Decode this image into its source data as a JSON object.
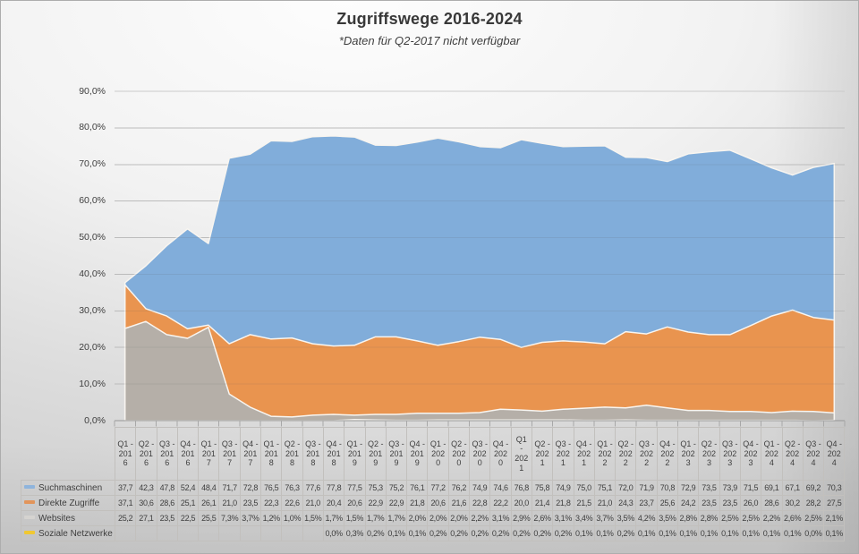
{
  "chart_data": {
    "type": "area",
    "stacked": false,
    "title": "Zugriffswege 2016-2024",
    "subtitle": "*Daten für Q2-2017 nicht verfügbar",
    "ylim": [
      0,
      90
    ],
    "grid": true,
    "legend_position": "table-rows-left",
    "y_tick_labels": [
      "90,0%",
      "80,0%",
      "70,0%",
      "60,0%",
      "50,0%",
      "40,0%",
      "30,0%",
      "20,0%",
      "10,0%",
      "0,0%"
    ],
    "categories": [
      "Q1-2016",
      "Q2-2016",
      "Q3-2016",
      "Q4-2016",
      "Q1-2017",
      "Q3-2017",
      "Q4-2017",
      "Q1-2018",
      "Q2-2018",
      "Q3-2018",
      "Q4-2018",
      "Q1-2019",
      "Q2-2019",
      "Q3-2019",
      "Q4-2019",
      "Q1-2020",
      "Q2-2020",
      "Q3-2020",
      "Q4-2020",
      "Q1-2021",
      "Q2-2021",
      "Q3-2021",
      "Q4-2021",
      "Q1-2022",
      "Q2-2022",
      "Q3-2022",
      "Q4-2022",
      "Q1-2023",
      "Q2-2023",
      "Q3-2023",
      "Q4-2023",
      "Q1-2024",
      "Q2-2024",
      "Q3-2024",
      "Q4-2024"
    ],
    "column_headers_display": [
      "Q1 -\n201\n6",
      "Q2 -\n201\n6",
      "Q3 -\n201\n6",
      "Q4 -\n201\n6",
      "Q1 -\n201\n7",
      "Q3 -\n201\n7",
      "Q4 -\n201\n7",
      "Q1 -\n201\n8",
      "Q2 -\n201\n8",
      "Q3 -\n201\n8",
      "Q4 -\n201\n8",
      "Q1 -\n201\n9",
      "Q2 -\n201\n9",
      "Q3 -\n201\n9",
      "Q4 -\n201\n9",
      "Q1 -\n202\n0",
      "Q2 -\n202\n0",
      "Q3 -\n202\n0",
      "Q4 -\n202\n0",
      "Q1\n-\n202\n1",
      "Q2 -\n202\n1",
      "Q3 -\n202\n1",
      "Q4 -\n202\n1",
      "Q1 -\n202\n2",
      "Q2 -\n202\n2",
      "Q3 -\n202\n2",
      "Q4 -\n202\n2",
      "Q1 -\n202\n3",
      "Q2 -\n202\n3",
      "Q3 -\n202\n3",
      "Q4 -\n202\n3",
      "Q1 -\n202\n4",
      "Q2 -\n202\n4",
      "Q3 -\n202\n4",
      "Q4 -\n202\n4"
    ],
    "series": [
      {
        "name": "Suchmaschinen",
        "area_color": "#81ADDA",
        "swatch_color": "#8FB4DC",
        "values": [
          37.7,
          42.3,
          47.8,
          52.4,
          48.4,
          71.7,
          72.8,
          76.5,
          76.3,
          77.6,
          77.8,
          77.5,
          75.3,
          75.2,
          76.1,
          77.2,
          76.2,
          74.9,
          74.6,
          76.8,
          75.8,
          74.9,
          75.0,
          75.1,
          72.0,
          71.9,
          70.8,
          72.9,
          73.5,
          73.9,
          71.5,
          69.1,
          67.1,
          69.2,
          70.3
        ],
        "display": [
          "37,7",
          "42,3",
          "47,8",
          "52,4",
          "48,4",
          "71,7",
          "72,8",
          "76,5",
          "76,3",
          "77,6",
          "77,8",
          "77,5",
          "75,3",
          "75,2",
          "76,1",
          "77,2",
          "76,2",
          "74,9",
          "74,6",
          "76,8",
          "75,8",
          "74,9",
          "75,0",
          "75,1",
          "72,0",
          "71,9",
          "70,8",
          "72,9",
          "73,5",
          "73,9",
          "71,5",
          "69,1",
          "67,1",
          "69,2",
          "70,3"
        ]
      },
      {
        "name": "Direkte Zugriffe",
        "area_color": "#E9944F",
        "swatch_color": "#E2955B",
        "values": [
          37.1,
          30.6,
          28.6,
          25.1,
          26.1,
          21.0,
          23.5,
          22.3,
          22.6,
          21.0,
          20.4,
          20.6,
          22.9,
          22.9,
          21.8,
          20.6,
          21.6,
          22.8,
          22.2,
          20.0,
          21.4,
          21.8,
          21.5,
          21.0,
          24.3,
          23.7,
          25.6,
          24.2,
          23.5,
          23.5,
          26.0,
          28.6,
          30.2,
          28.2,
          27.5
        ],
        "display": [
          "37,1",
          "30,6",
          "28,6",
          "25,1",
          "26,1",
          "21,0",
          "23,5",
          "22,3",
          "22,6",
          "21,0",
          "20,4",
          "20,6",
          "22,9",
          "22,9",
          "21,8",
          "20,6",
          "21,6",
          "22,8",
          "22,2",
          "20,0",
          "21,4",
          "21,8",
          "21,5",
          "21,0",
          "24,3",
          "23,7",
          "25,6",
          "24,2",
          "23,5",
          "23,5",
          "26,0",
          "28,6",
          "30,2",
          "28,2",
          "27,5"
        ]
      },
      {
        "name": "Websites",
        "area_color": "#B5AFA8",
        "swatch_color": "#D5D3D0",
        "values": [
          25.2,
          27.1,
          23.5,
          22.5,
          25.5,
          7.3,
          3.7,
          1.2,
          1.0,
          1.5,
          1.7,
          1.5,
          1.7,
          1.7,
          2.0,
          2.0,
          2.0,
          2.2,
          3.1,
          2.9,
          2.6,
          3.1,
          3.4,
          3.7,
          3.5,
          4.2,
          3.5,
          2.8,
          2.8,
          2.5,
          2.5,
          2.2,
          2.6,
          2.5,
          2.1
        ],
        "display": [
          "25,2",
          "27,1",
          "23,5",
          "22,5",
          "25,5",
          "7,3%",
          "3,7%",
          "1,2%",
          "1,0%",
          "1,5%",
          "1,7%",
          "1,5%",
          "1,7%",
          "1,7%",
          "2,0%",
          "2,0%",
          "2,0%",
          "2,2%",
          "3,1%",
          "2,9%",
          "2,6%",
          "3,1%",
          "3,4%",
          "3,7%",
          "3,5%",
          "4,2%",
          "3,5%",
          "2,8%",
          "2,8%",
          "2,5%",
          "2,5%",
          "2,2%",
          "2,6%",
          "2,5%",
          "2,1%"
        ]
      },
      {
        "name": "Soziale Netzwerke",
        "area_color": "#FFD232",
        "swatch_color": "#F0C832",
        "values": [
          null,
          null,
          null,
          null,
          null,
          null,
          null,
          null,
          null,
          null,
          0.0,
          0.3,
          0.2,
          0.1,
          0.1,
          0.2,
          0.2,
          0.2,
          0.2,
          0.2,
          0.2,
          0.2,
          0.1,
          0.1,
          0.2,
          0.1,
          0.1,
          0.1,
          0.1,
          0.1,
          0.1,
          0.1,
          0.1,
          0.0,
          0.1
        ],
        "display": [
          "",
          "",
          "",
          "",
          "",
          "",
          "",
          "",
          "",
          "",
          "0,0%",
          "0,3%",
          "0,2%",
          "0,1%",
          "0,1%",
          "0,2%",
          "0,2%",
          "0,2%",
          "0,2%",
          "0,2%",
          "0,2%",
          "0,2%",
          "0,1%",
          "0,1%",
          "0,2%",
          "0,1%",
          "0,1%",
          "0,1%",
          "0,1%",
          "0,1%",
          "0,1%",
          "0,1%",
          "0,1%",
          "0,0%",
          "0,1%"
        ]
      }
    ]
  },
  "style": {
    "gridline_color": "#CBCBCB",
    "axis_line_color": "#969696",
    "tick_color": "#A8A8A8",
    "area_outline_color": "#F8F5F0"
  }
}
